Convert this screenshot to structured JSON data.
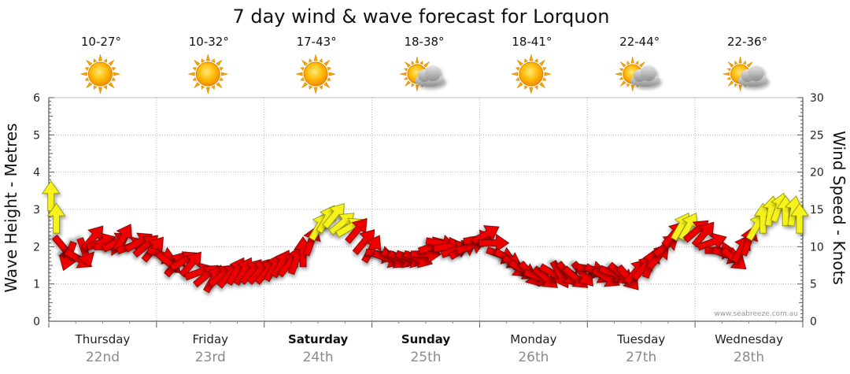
{
  "chart_data": {
    "type": "line",
    "title": "7 day wind & wave forecast for Lorquon",
    "ylabel_left": "Wave Height - Metres",
    "ylabel_right": "Wind Speed - Knots",
    "ylim_left": [
      0,
      6
    ],
    "ylim_right": [
      0,
      30
    ],
    "yticks_left": [
      "0",
      "1",
      "2",
      "3",
      "4",
      "5",
      "6"
    ],
    "yticks_right": [
      "0",
      "5",
      "10",
      "15",
      "20",
      "25",
      "30"
    ],
    "grid": true,
    "credit": "www.seabreeze.com.au",
    "days": [
      {
        "name": "Thursday",
        "date": "22nd",
        "temp": "10-27°",
        "weather": "sunny",
        "bold": false
      },
      {
        "name": "Friday",
        "date": "23rd",
        "temp": "10-32°",
        "weather": "sunny",
        "bold": false
      },
      {
        "name": "Saturday",
        "date": "24th",
        "temp": "17-43°",
        "weather": "sunny",
        "bold": true
      },
      {
        "name": "Sunday",
        "date": "25th",
        "temp": "18-38°",
        "weather": "partly-cloudy",
        "bold": true
      },
      {
        "name": "Monday",
        "date": "26th",
        "temp": "18-41°",
        "weather": "sunny",
        "bold": false
      },
      {
        "name": "Tuesday",
        "date": "27th",
        "temp": "22-44°",
        "weather": "partly-cloudy",
        "bold": false
      },
      {
        "name": "Wednesday",
        "date": "28th",
        "temp": "22-36°",
        "weather": "partly-cloudy",
        "bold": false
      }
    ],
    "wind_series": {
      "name": "Wind",
      "x_day": [
        0.02,
        0.07,
        0.13,
        0.19,
        0.26,
        0.33,
        0.4,
        0.47,
        0.54,
        0.61,
        0.68,
        0.75,
        0.82,
        0.89,
        0.96,
        1.03,
        1.1,
        1.17,
        1.24,
        1.31,
        1.38,
        1.45,
        1.52,
        1.59,
        1.66,
        1.73,
        1.8,
        1.87,
        1.94,
        2.01,
        2.08,
        2.15,
        2.22,
        2.29,
        2.36,
        2.43,
        2.5,
        2.57,
        2.64,
        2.71,
        2.78,
        2.85,
        2.92,
        2.99,
        3.06,
        3.13,
        3.2,
        3.27,
        3.34,
        3.41,
        3.48,
        3.55,
        3.62,
        3.69,
        3.76,
        3.83,
        3.9,
        3.97,
        4.04,
        4.11,
        4.18,
        4.25,
        4.32,
        4.39,
        4.46,
        4.53,
        4.6,
        4.67,
        4.74,
        4.81,
        4.88,
        4.95,
        5.02,
        5.09,
        5.16,
        5.23,
        5.3,
        5.37,
        5.44,
        5.51,
        5.58,
        5.65,
        5.72,
        5.79,
        5.86,
        5.93,
        6.0,
        6.07,
        6.14,
        6.21,
        6.28,
        6.35,
        6.42,
        6.49,
        6.56,
        6.63,
        6.7,
        6.77,
        6.84,
        6.91,
        6.97
      ],
      "knots": [
        16.5,
        13.5,
        10.0,
        9.0,
        8.5,
        9.5,
        11.0,
        10.5,
        10.0,
        10.5,
        11.0,
        10.0,
        10.5,
        10.0,
        9.5,
        9.0,
        8.0,
        7.5,
        8.0,
        7.5,
        6.5,
        6.0,
        5.5,
        6.0,
        6.0,
        6.5,
        6.5,
        6.5,
        6.5,
        6.5,
        7.0,
        7.5,
        7.5,
        8.0,
        9.0,
        10.5,
        12.5,
        13.5,
        14.0,
        13.0,
        12.5,
        12.0,
        10.5,
        9.5,
        9.0,
        8.5,
        8.5,
        8.5,
        8.5,
        8.5,
        9.0,
        10.0,
        10.5,
        10.0,
        9.5,
        9.5,
        10.0,
        11.0,
        11.5,
        10.5,
        9.0,
        8.5,
        7.5,
        7.0,
        6.5,
        6.0,
        6.0,
        6.5,
        6.5,
        6.5,
        6.0,
        6.5,
        7.0,
        6.5,
        6.0,
        6.5,
        6.5,
        6.0,
        6.5,
        7.0,
        7.5,
        8.5,
        10.0,
        11.5,
        12.5,
        12.5,
        12.0,
        11.5,
        10.5,
        9.5,
        9.0,
        8.5,
        9.5,
        10.5,
        12.5,
        13.5,
        14.5,
        15.0,
        14.5,
        14.5,
        13.5
      ],
      "direction_deg": [
        0,
        0,
        140,
        200,
        120,
        160,
        40,
        70,
        90,
        60,
        30,
        70,
        60,
        50,
        40,
        110,
        130,
        40,
        60,
        40,
        70,
        50,
        30,
        50,
        40,
        30,
        30,
        40,
        40,
        40,
        30,
        30,
        40,
        20,
        0,
        20,
        30,
        30,
        40,
        50,
        60,
        40,
        40,
        30,
        100,
        110,
        120,
        110,
        110,
        110,
        90,
        70,
        100,
        80,
        70,
        60,
        70,
        80,
        60,
        90,
        110,
        120,
        130,
        120,
        140,
        110,
        130,
        120,
        150,
        140,
        130,
        140,
        100,
        120,
        120,
        110,
        130,
        140,
        40,
        40,
        20,
        40,
        50,
        40,
        30,
        30,
        50,
        40,
        70,
        90,
        110,
        130,
        30,
        20,
        30,
        0,
        10,
        20,
        0,
        10,
        0
      ]
    }
  }
}
